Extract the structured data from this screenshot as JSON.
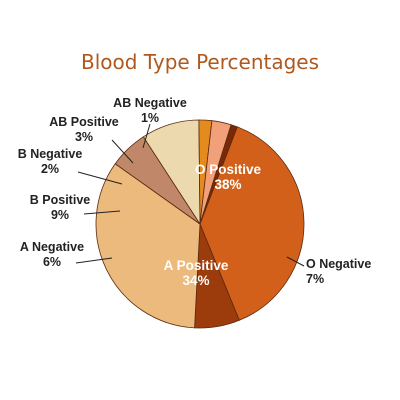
{
  "chart_data": {
    "type": "pie",
    "title": "Blood Type Percentages",
    "slices": [
      {
        "label": "O Positive",
        "value": 38,
        "pct_label": "38%",
        "color": "#d2601a"
      },
      {
        "label": "O Negative",
        "value": 7,
        "pct_label": "7%",
        "color": "#9c3b0c"
      },
      {
        "label": "A Positive",
        "value": 34,
        "pct_label": "34%",
        "color": "#ebba7c"
      },
      {
        "label": "A Negative",
        "value": 6,
        "pct_label": "6%",
        "color": "#c08768"
      },
      {
        "label": "B Positive",
        "value": 9,
        "pct_label": "9%",
        "color": "#ecd9ae"
      },
      {
        "label": "B Negative",
        "value": 2,
        "pct_label": "2%",
        "color": "#e58a1d"
      },
      {
        "label": "AB Positive",
        "value": 3,
        "pct_label": "3%",
        "color": "#f2a07a"
      },
      {
        "label": "AB Negative",
        "value": 1,
        "pct_label": "1%",
        "color": "#7a2808"
      }
    ]
  }
}
